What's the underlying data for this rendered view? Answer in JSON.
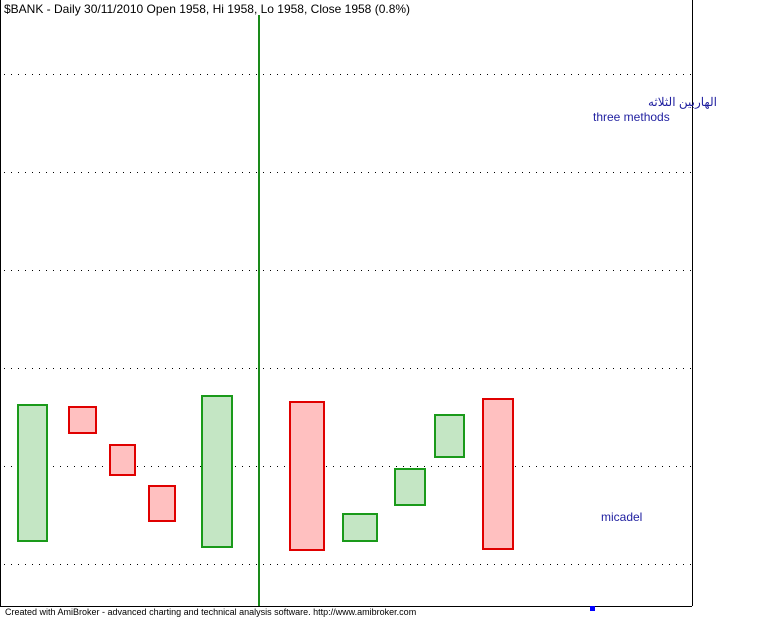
{
  "header": {
    "title": "$BANK - Daily 30/11/2010 Open 1958, Hi 1958, Lo 1958, Close 1958 (0.8%)"
  },
  "annotations": {
    "arabic": "الهاربين الثلاثه",
    "pattern": "three methods",
    "author": "micadel"
  },
  "footer": {
    "text": "Created with AmiBroker - advanced charting and technical analysis software. http://www.amibroker.com"
  }
}
